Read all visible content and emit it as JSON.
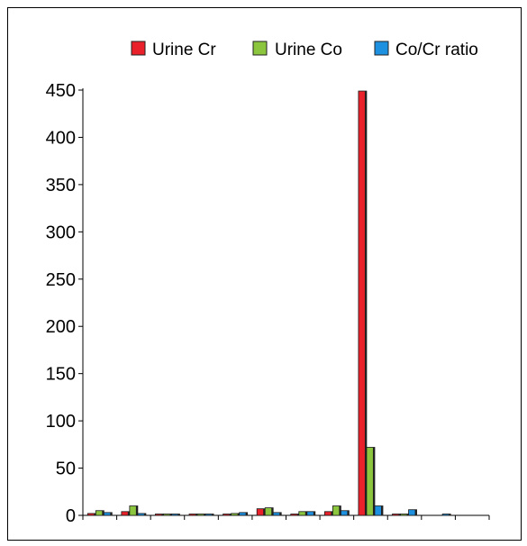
{
  "chart_data": {
    "type": "bar",
    "title": "",
    "xlabel": "",
    "ylabel": "",
    "ylim": [
      0,
      450
    ],
    "yticks": [
      0,
      50,
      100,
      150,
      200,
      250,
      300,
      350,
      400,
      450
    ],
    "grid": false,
    "legend_position": "top-right",
    "categories": [
      "",
      "",
      "",
      "",
      "",
      "",
      "",
      "",
      "",
      "",
      "",
      ""
    ],
    "series": [
      {
        "name": "Urine Cr",
        "color": "#e8212a",
        "values": [
          2,
          4,
          1,
          1,
          1,
          7,
          1,
          4,
          449,
          1,
          0,
          0
        ]
      },
      {
        "name": "Urine Co",
        "color": "#8cc63f",
        "values": [
          5,
          10,
          1,
          1,
          2,
          8,
          4,
          10,
          72,
          1,
          0,
          0
        ]
      },
      {
        "name": "Co/Cr ratio",
        "color": "#1e90e0",
        "values": [
          3,
          2,
          0.5,
          0.5,
          3,
          3,
          4,
          5,
          10,
          6,
          1,
          0
        ]
      }
    ]
  }
}
